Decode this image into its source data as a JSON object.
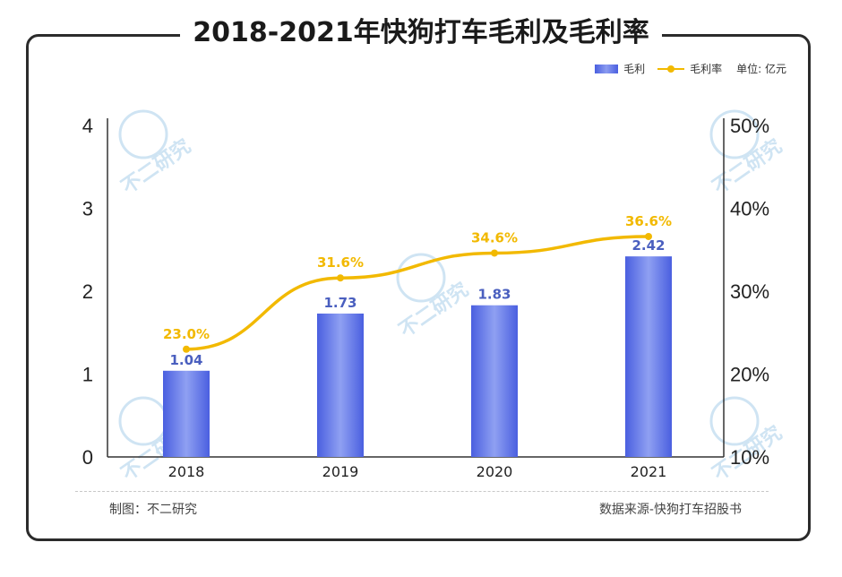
{
  "header": {
    "title": "2018-2021年快狗打车毛利及毛利率"
  },
  "legend": {
    "bar_label": "毛利",
    "line_label": "毛利率",
    "unit": "单位: 亿元"
  },
  "footer": {
    "left": "制图：不二研究",
    "right": "数据来源-快狗打车招股书"
  },
  "watermark": {
    "text": "不二研究"
  },
  "chart_data": {
    "type": "bar",
    "title": "2018-2021年快狗打车毛利及毛利率",
    "categories": [
      "2018",
      "2019",
      "2020",
      "2021"
    ],
    "series": [
      {
        "name": "毛利",
        "type": "bar",
        "axis": "left",
        "values": [
          1.04,
          1.73,
          1.83,
          2.42
        ],
        "labels": [
          "1.04",
          "1.73",
          "1.83",
          "2.42"
        ]
      },
      {
        "name": "毛利率",
        "type": "line",
        "axis": "right",
        "values": [
          23.0,
          31.6,
          34.6,
          36.6
        ],
        "labels": [
          "23.0%",
          "31.6%",
          "34.6%",
          "36.6%"
        ]
      }
    ],
    "y_left": {
      "min": 0,
      "max": 4,
      "ticks": [
        "0",
        "1",
        "2",
        "3",
        "4"
      ],
      "tick_values": [
        0,
        1,
        2,
        3,
        4
      ]
    },
    "y_right": {
      "min": 10,
      "max": 50,
      "ticks": [
        "10%",
        "20%",
        "30%",
        "40%",
        "50%"
      ],
      "tick_values": [
        10,
        20,
        30,
        40,
        50
      ]
    },
    "colors": {
      "bar": "#4a5fe0",
      "bar_light": "#8fa0f2",
      "line": "#f2b900",
      "bar_label": "#4a5fbf",
      "line_label": "#f2b900"
    },
    "grid": false,
    "legend_position": "top-right"
  }
}
